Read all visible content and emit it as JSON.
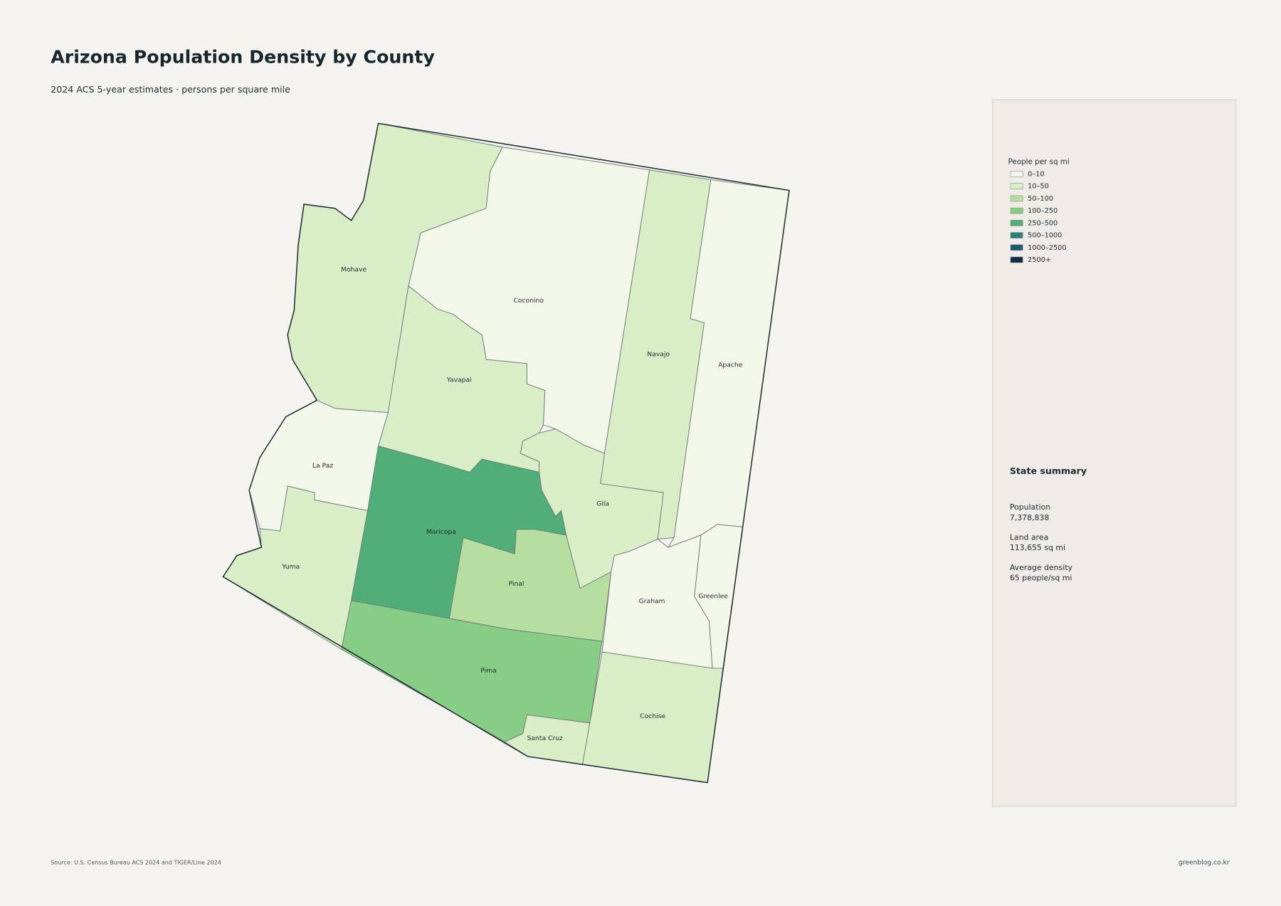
{
  "title": "Arizona Population Density by County",
  "subtitle": "2024 ACS 5-year estimates · persons per square mile",
  "legend": {
    "title": "People per sq mi",
    "items": [
      {
        "label": "0–10",
        "color": "#f2f7ea"
      },
      {
        "label": "10–50",
        "color": "#d9eec7"
      },
      {
        "label": "50–100",
        "color": "#b5dea0"
      },
      {
        "label": "100–250",
        "color": "#88cd85"
      },
      {
        "label": "250–500",
        "color": "#50ae78"
      },
      {
        "label": "500–1000",
        "color": "#2a7f7a"
      },
      {
        "label": "1000–2500",
        "color": "#1a5a70"
      },
      {
        "label": "2500+",
        "color": "#14294a"
      }
    ]
  },
  "counties": [
    {
      "name": "Mohave",
      "color": "#d9eec7"
    },
    {
      "name": "Coconino",
      "color": "#f2f7ea"
    },
    {
      "name": "Navajo",
      "color": "#d9eec7"
    },
    {
      "name": "Apache",
      "color": "#f2f7ea"
    },
    {
      "name": "Yavapai",
      "color": "#d9eec7"
    },
    {
      "name": "La Paz",
      "color": "#f2f7ea"
    },
    {
      "name": "Yuma",
      "color": "#d9eec7"
    },
    {
      "name": "Maricopa",
      "color": "#50ae78"
    },
    {
      "name": "Gila",
      "color": "#d9eec7"
    },
    {
      "name": "Pinal",
      "color": "#b5dea0"
    },
    {
      "name": "Pima",
      "color": "#88cd85"
    },
    {
      "name": "Santa Cruz",
      "color": "#d9eec7"
    },
    {
      "name": "Cochise",
      "color": "#d9eec7"
    },
    {
      "name": "Graham",
      "color": "#f2f7ea"
    },
    {
      "name": "Greenlee",
      "color": "#f2f7ea"
    }
  ],
  "summary": {
    "title": "State summary",
    "items": [
      {
        "label": "Population",
        "value": "7,378,838"
      },
      {
        "label": "Land area",
        "value": "113,655 sq mi"
      },
      {
        "label": "Average density",
        "value": "65 people/sq mi"
      }
    ]
  },
  "source": "Source: U.S. Census Bureau ACS 2024 and TIGER/Line 2024",
  "credit": "greenblog.co.kr"
}
